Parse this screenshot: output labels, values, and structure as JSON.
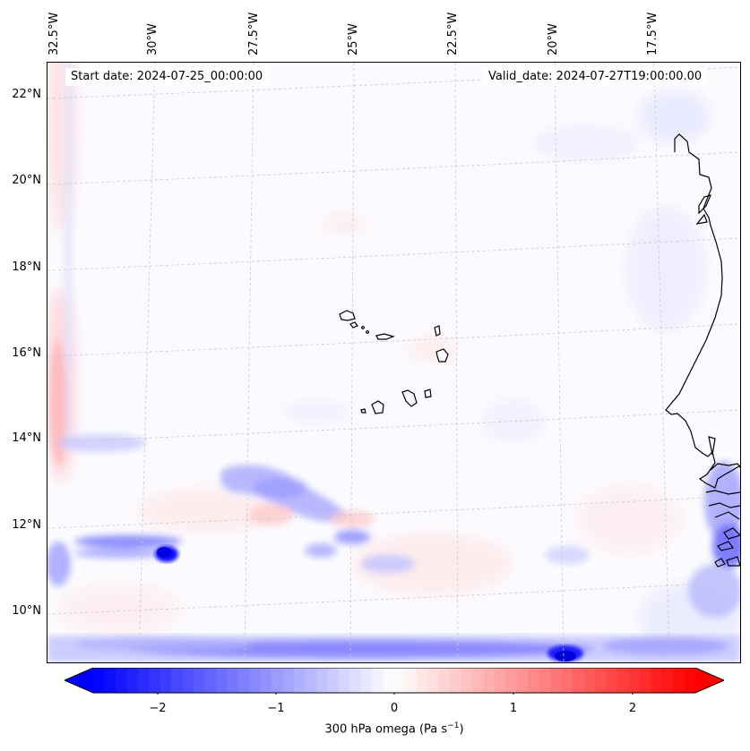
{
  "header": {
    "start_date": "Start date: 2024-07-25_00:00:00",
    "valid_date": "Valid_date: 2024-07-27T19:00:00.00"
  },
  "axes": {
    "lon_labels": [
      "32.5°W",
      "30°W",
      "27.5°W",
      "25°W",
      "22.5°W",
      "20°W",
      "17.5°W"
    ],
    "lat_labels": [
      "22°N",
      "20°N",
      "18°N",
      "16°N",
      "14°N",
      "12°N",
      "10°N"
    ]
  },
  "colorbar": {
    "variable": "300 hPa omega (Pa s",
    "unit_exponent": "−1",
    "unit_close": ")",
    "ticks": [
      "−2",
      "−1",
      "0",
      "1",
      "2"
    ],
    "range": [
      -2.7,
      2.7
    ],
    "extend": "both",
    "colors": {
      "min": "#0000ff",
      "mid": "#ffffff",
      "max": "#ff0000"
    }
  },
  "map_features": {
    "coastline_color": "#000000",
    "gridline_color": "#c8c8c8",
    "colormap": "bwr"
  }
}
